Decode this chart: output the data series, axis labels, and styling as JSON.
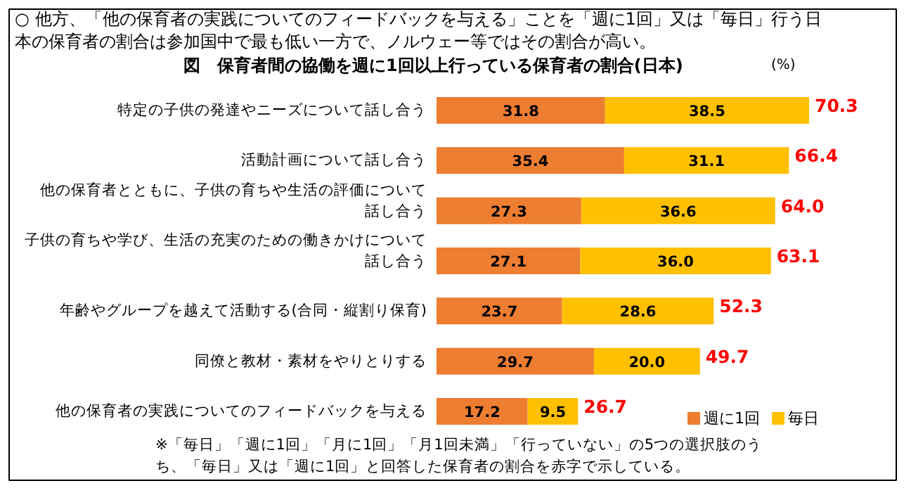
{
  "chart_data": {
    "type": "bar",
    "orientation": "horizontal",
    "stacked": true,
    "legend": "bottom right",
    "grid": false,
    "title": "図　保育者間の協働を週に1回以上行っている保育者の割合(日本)",
    "xlabel": "(%)",
    "annotations": [
      "○ 他方、「他の保育者の実践についてのフィードバックを与える」ことを「週に1回」又は「毎日」行う日本の保育者の割合は参加国中で最も低い一方で、ノルウェー等ではその割合が高い。",
      "※「毎日」「週に1回」「月に1回」「月1回未満」「行っていない」の5つの選択肢のうち、「毎日」又は「週に1回」と回答した保育者の割合を赤字で示している。"
    ],
    "categories": [
      "特定の子供の発達やニーズについて話し合う",
      "活動計画について話し合う",
      "他の保育者とともに、子供の育ちや生活の評価について話し合う",
      "子供の育ちや学び、生活の充実のための働きかけについて話し合う",
      "年齢やグループを越えて活動する(合同・縦割り保育)",
      "同僚と教材・素材をやりとりする",
      "他の保育者の実践についてのフィードバックを与える"
    ],
    "series": [
      {
        "name": "週に1回",
        "color": "#ed7d31",
        "values": [
          31.8,
          35.4,
          27.3,
          27.1,
          23.7,
          29.7,
          17.2
        ],
        "value_labels": [
          "31.8",
          "35.4",
          "27.3",
          "27.1",
          "23.7",
          "29.7",
          "17.2"
        ]
      },
      {
        "name": "毎日",
        "color": "#ffc000",
        "values": [
          38.5,
          31.1,
          36.6,
          36.0,
          28.6,
          20.0,
          9.5
        ],
        "value_labels": [
          "38.5",
          "31.1",
          "36.6",
          "36.0",
          "28.6",
          "20.0",
          "9.5"
        ]
      }
    ],
    "totals": [
      "70.3",
      "66.4",
      "64.0",
      "63.1",
      "52.3",
      "49.7",
      "26.7"
    ]
  }
}
